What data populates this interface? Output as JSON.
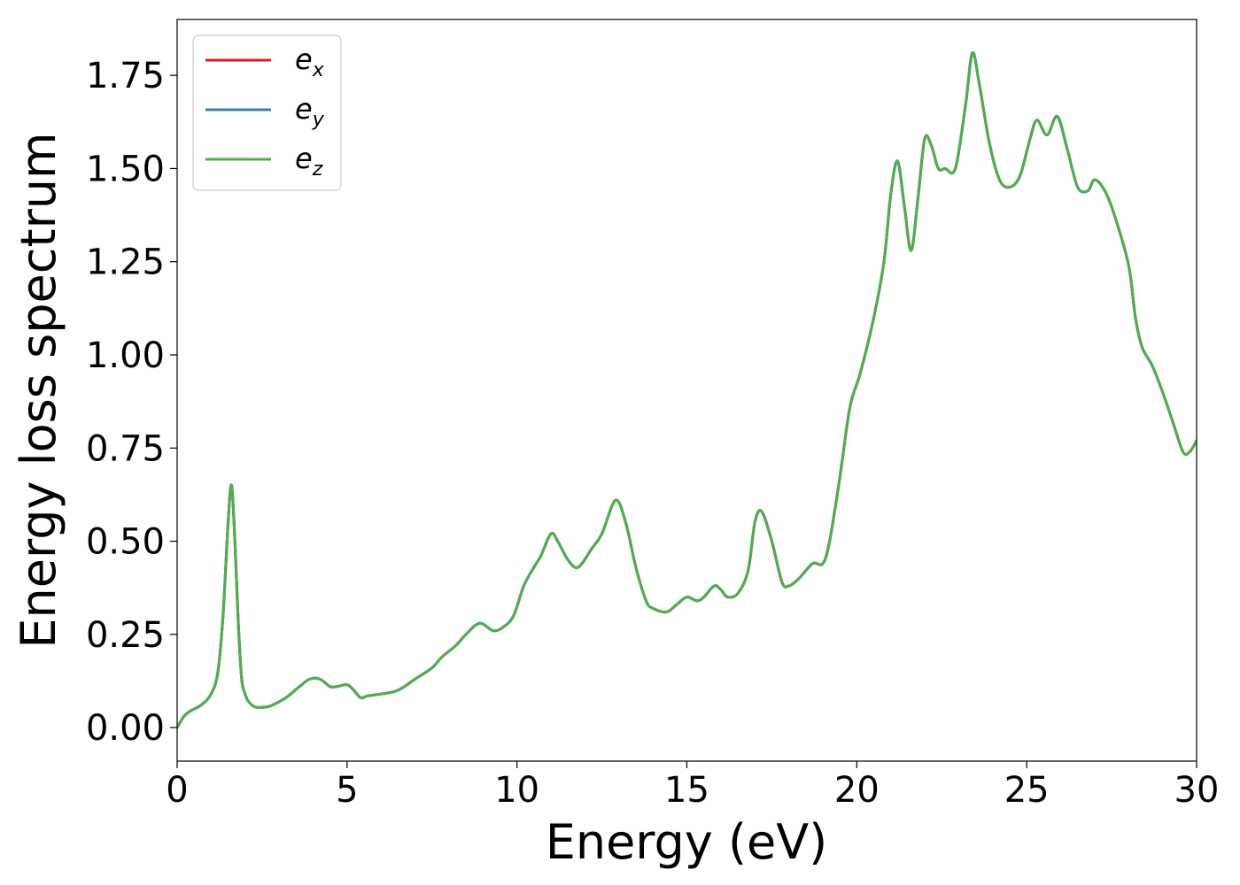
{
  "chart_data": {
    "type": "line",
    "xlabel": "Energy (eV)",
    "ylabel": "Energy loss spectrum",
    "xlim": [
      0,
      30
    ],
    "ylim": [
      -0.09,
      1.9
    ],
    "x_ticks": [
      "0",
      "5",
      "10",
      "15",
      "20",
      "25",
      "30"
    ],
    "x_tick_values": [
      0,
      5,
      10,
      15,
      20,
      25,
      30
    ],
    "y_ticks": [
      "0.00",
      "0.25",
      "0.50",
      "0.75",
      "1.00",
      "1.25",
      "1.50",
      "1.75"
    ],
    "y_tick_values": [
      0,
      0.25,
      0.5,
      0.75,
      1.0,
      1.25,
      1.5,
      1.75
    ],
    "grid": false,
    "legend_position": "top-left",
    "x": [
      0,
      0.2,
      0.4,
      0.7,
      1.0,
      1.2,
      1.35,
      1.5,
      1.6,
      1.7,
      1.8,
      1.9,
      2.0,
      2.1,
      2.3,
      2.6,
      2.8,
      3.2,
      3.6,
      3.9,
      4.2,
      4.5,
      4.7,
      5.0,
      5.2,
      5.4,
      5.6,
      6.0,
      6.5,
      7.0,
      7.5,
      7.8,
      8.2,
      8.5,
      8.9,
      9.3,
      9.6,
      9.9,
      10.2,
      10.5,
      10.7,
      11.0,
      11.2,
      11.5,
      11.8,
      12.2,
      12.5,
      12.9,
      13.2,
      13.5,
      13.8,
      14.0,
      14.4,
      14.7,
      15.0,
      15.3,
      15.5,
      15.8,
      16.0,
      16.2,
      16.5,
      16.8,
      17.0,
      17.2,
      17.5,
      17.8,
      18.0,
      18.3,
      18.7,
      19.0,
      19.2,
      19.5,
      19.8,
      20.1,
      20.5,
      20.8,
      21.0,
      21.2,
      21.4,
      21.6,
      21.8,
      22.0,
      22.2,
      22.4,
      22.6,
      22.9,
      23.2,
      23.4,
      23.6,
      23.9,
      24.2,
      24.5,
      24.8,
      25.1,
      25.3,
      25.6,
      25.9,
      26.2,
      26.5,
      26.8,
      27.0,
      27.3,
      27.6,
      28.0,
      28.2,
      28.4,
      28.7,
      29.0,
      29.3,
      29.6,
      29.8,
      30.0
    ],
    "series": [
      {
        "name": "e_x",
        "color": "#e41a1c",
        "values": [
          0.0,
          0.03,
          0.045,
          0.06,
          0.09,
          0.15,
          0.3,
          0.55,
          0.65,
          0.5,
          0.28,
          0.13,
          0.09,
          0.07,
          0.055,
          0.055,
          0.06,
          0.08,
          0.11,
          0.13,
          0.13,
          0.11,
          0.11,
          0.115,
          0.1,
          0.08,
          0.085,
          0.09,
          0.1,
          0.13,
          0.16,
          0.19,
          0.22,
          0.25,
          0.28,
          0.26,
          0.27,
          0.3,
          0.38,
          0.43,
          0.46,
          0.52,
          0.5,
          0.45,
          0.43,
          0.48,
          0.52,
          0.61,
          0.55,
          0.43,
          0.34,
          0.32,
          0.31,
          0.33,
          0.35,
          0.34,
          0.35,
          0.38,
          0.37,
          0.35,
          0.36,
          0.42,
          0.55,
          0.58,
          0.5,
          0.39,
          0.38,
          0.4,
          0.44,
          0.44,
          0.5,
          0.67,
          0.86,
          0.95,
          1.1,
          1.25,
          1.43,
          1.52,
          1.4,
          1.28,
          1.42,
          1.58,
          1.56,
          1.5,
          1.5,
          1.5,
          1.67,
          1.81,
          1.73,
          1.57,
          1.47,
          1.45,
          1.48,
          1.58,
          1.63,
          1.59,
          1.64,
          1.55,
          1.45,
          1.44,
          1.47,
          1.44,
          1.37,
          1.24,
          1.1,
          1.02,
          0.97,
          0.9,
          0.82,
          0.74,
          0.74,
          0.77
        ]
      },
      {
        "name": "e_y",
        "color": "#377eb8",
        "values": [
          0.0,
          0.03,
          0.045,
          0.06,
          0.09,
          0.15,
          0.3,
          0.55,
          0.65,
          0.5,
          0.28,
          0.13,
          0.09,
          0.07,
          0.055,
          0.055,
          0.06,
          0.08,
          0.11,
          0.13,
          0.13,
          0.11,
          0.11,
          0.115,
          0.1,
          0.08,
          0.085,
          0.09,
          0.1,
          0.13,
          0.16,
          0.19,
          0.22,
          0.25,
          0.28,
          0.26,
          0.27,
          0.3,
          0.38,
          0.43,
          0.46,
          0.52,
          0.5,
          0.45,
          0.43,
          0.48,
          0.52,
          0.61,
          0.55,
          0.43,
          0.34,
          0.32,
          0.31,
          0.33,
          0.35,
          0.34,
          0.35,
          0.38,
          0.37,
          0.35,
          0.36,
          0.42,
          0.55,
          0.58,
          0.5,
          0.39,
          0.38,
          0.4,
          0.44,
          0.44,
          0.5,
          0.67,
          0.86,
          0.95,
          1.1,
          1.25,
          1.43,
          1.52,
          1.4,
          1.28,
          1.42,
          1.58,
          1.56,
          1.5,
          1.5,
          1.5,
          1.67,
          1.81,
          1.73,
          1.57,
          1.47,
          1.45,
          1.48,
          1.58,
          1.63,
          1.59,
          1.64,
          1.55,
          1.45,
          1.44,
          1.47,
          1.44,
          1.37,
          1.24,
          1.1,
          1.02,
          0.97,
          0.9,
          0.82,
          0.74,
          0.74,
          0.77
        ]
      },
      {
        "name": "e_z",
        "color": "#4daf4a",
        "values": [
          0.0,
          0.03,
          0.045,
          0.06,
          0.09,
          0.15,
          0.3,
          0.55,
          0.65,
          0.5,
          0.28,
          0.13,
          0.09,
          0.07,
          0.055,
          0.055,
          0.06,
          0.08,
          0.11,
          0.13,
          0.13,
          0.11,
          0.11,
          0.115,
          0.1,
          0.08,
          0.085,
          0.09,
          0.1,
          0.13,
          0.16,
          0.19,
          0.22,
          0.25,
          0.28,
          0.26,
          0.27,
          0.3,
          0.38,
          0.43,
          0.46,
          0.52,
          0.5,
          0.45,
          0.43,
          0.48,
          0.52,
          0.61,
          0.55,
          0.43,
          0.34,
          0.32,
          0.31,
          0.33,
          0.35,
          0.34,
          0.35,
          0.38,
          0.37,
          0.35,
          0.36,
          0.42,
          0.55,
          0.58,
          0.5,
          0.39,
          0.38,
          0.4,
          0.44,
          0.44,
          0.5,
          0.67,
          0.86,
          0.95,
          1.1,
          1.25,
          1.43,
          1.52,
          1.4,
          1.28,
          1.42,
          1.58,
          1.56,
          1.5,
          1.5,
          1.5,
          1.67,
          1.81,
          1.73,
          1.57,
          1.47,
          1.45,
          1.48,
          1.58,
          1.63,
          1.59,
          1.64,
          1.55,
          1.45,
          1.44,
          1.47,
          1.44,
          1.37,
          1.24,
          1.1,
          1.02,
          0.97,
          0.9,
          0.82,
          0.74,
          0.74,
          0.77
        ]
      }
    ],
    "legend": [
      {
        "base": "e",
        "sub": "x",
        "color": "#e41a1c"
      },
      {
        "base": "e",
        "sub": "y",
        "color": "#377eb8"
      },
      {
        "base": "e",
        "sub": "z",
        "color": "#4daf4a"
      }
    ]
  }
}
